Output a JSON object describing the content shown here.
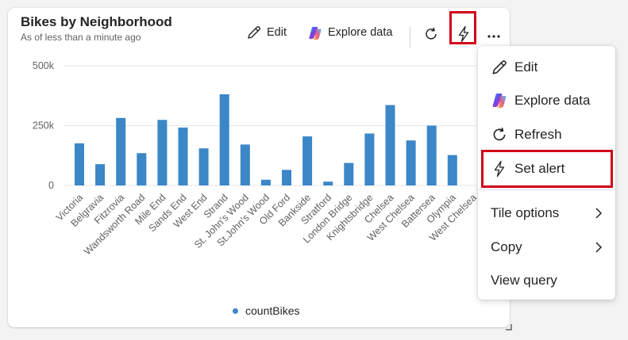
{
  "tile": {
    "title": "Bikes by Neighborhood",
    "subtitle": "As of less than a minute ago"
  },
  "toolbar": {
    "edit_label": "Edit",
    "explore_label": "Explore data",
    "refresh_icon": "refresh-icon",
    "alert_icon": "lightning-icon",
    "more_icon": "more-horizontal-icon"
  },
  "menu": {
    "items": [
      {
        "label": "Edit",
        "icon": "pencil-icon"
      },
      {
        "label": "Explore data",
        "icon": "copilot-icon"
      },
      {
        "label": "Refresh",
        "icon": "refresh-icon"
      },
      {
        "label": "Set alert",
        "icon": "lightning-icon"
      },
      {
        "label": "Tile options",
        "icon": "chevron-right-icon"
      },
      {
        "label": "Copy",
        "icon": "chevron-right-icon"
      },
      {
        "label": "View query"
      }
    ]
  },
  "colors": {
    "bar": "#3b87c8",
    "highlight": "#d0021b",
    "gridline": "#e6e6e6"
  },
  "chart_data": {
    "type": "bar",
    "categories": [
      "Victoria",
      "Belgravia",
      "Fitzrovia",
      "Wandsworth Road",
      "Mile End",
      "Sands End",
      "West End",
      "Strand",
      "St. John's Wood",
      "St.John's Wood",
      "Old Ford",
      "Bankside",
      "Stratford",
      "London Bridge",
      "Knightsbridge",
      "Chelsea",
      "West Chelsea",
      "Battersea",
      "Olympia",
      "West Chelsea"
    ],
    "series": [
      {
        "name": "countBikes",
        "values": [
          176000,
          89000,
          282000,
          135000,
          274000,
          242000,
          155000,
          381000,
          171000,
          24000,
          65000,
          205000,
          16000,
          94000,
          217000,
          336000,
          188000,
          250000,
          127000,
          null
        ]
      }
    ],
    "yticks": [
      "0",
      "250k",
      "500k"
    ],
    "ylim": [
      0,
      500000
    ],
    "grid": true,
    "legend": "bottom"
  }
}
